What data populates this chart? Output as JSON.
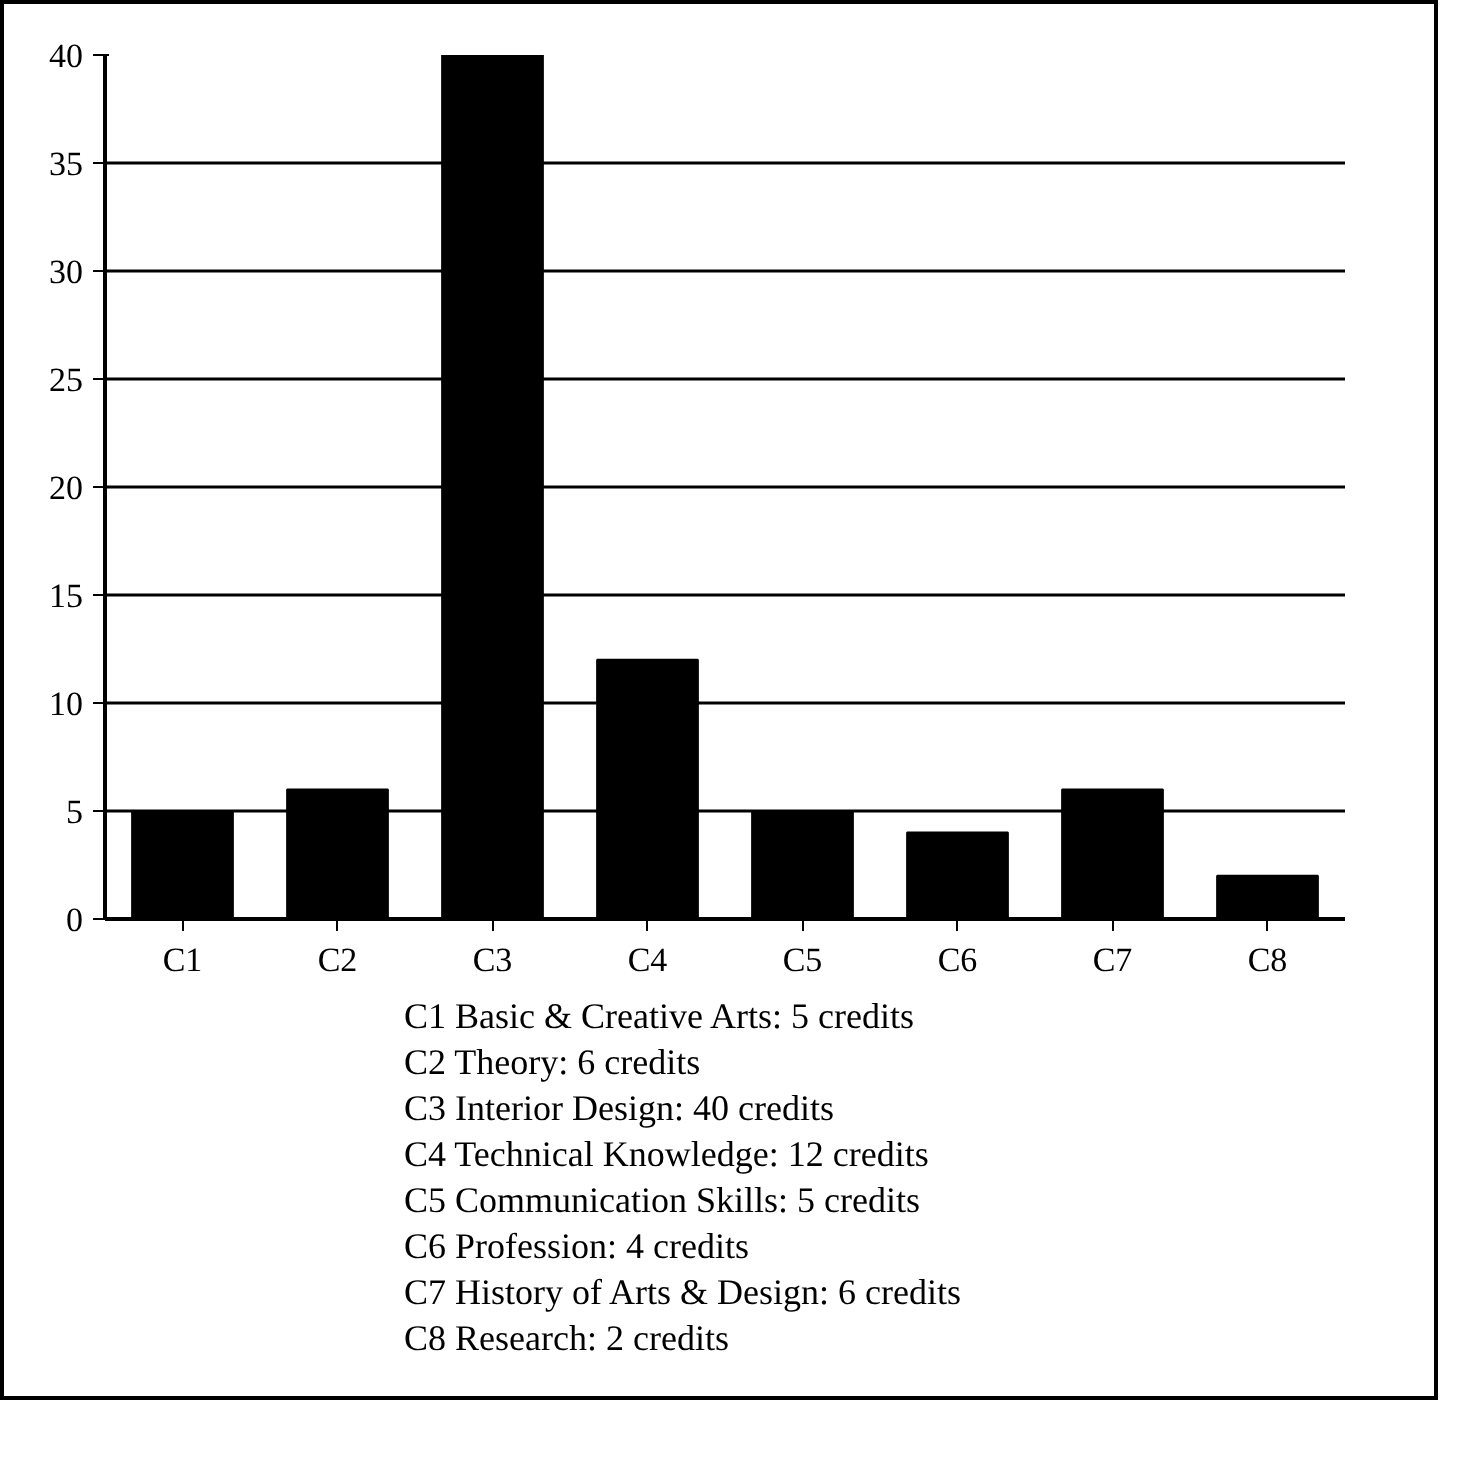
{
  "chart_data": {
    "type": "bar",
    "categories": [
      "C1",
      "C2",
      "C3",
      "C4",
      "C5",
      "C6",
      "C7",
      "C8"
    ],
    "values": [
      5,
      6,
      40,
      12,
      5,
      4,
      6,
      2
    ],
    "color": "#000000",
    "ylim": [
      0,
      40
    ],
    "yticks": [
      0,
      5,
      10,
      15,
      20,
      25,
      30,
      35,
      40
    ],
    "grid": "y",
    "annotations": [
      "C1 Basic & Creative Arts: 5 credits",
      "C2 Theory: 6 credits",
      "C3 Interior Design: 40 credits",
      "C4 Technical Knowledge: 12 credits",
      "C5 Communication Skills: 5 credits",
      "C6 Profession: 4 credits",
      "C7 History of Arts & Design: 6 credits",
      "C8 Research: 2 credits"
    ]
  }
}
